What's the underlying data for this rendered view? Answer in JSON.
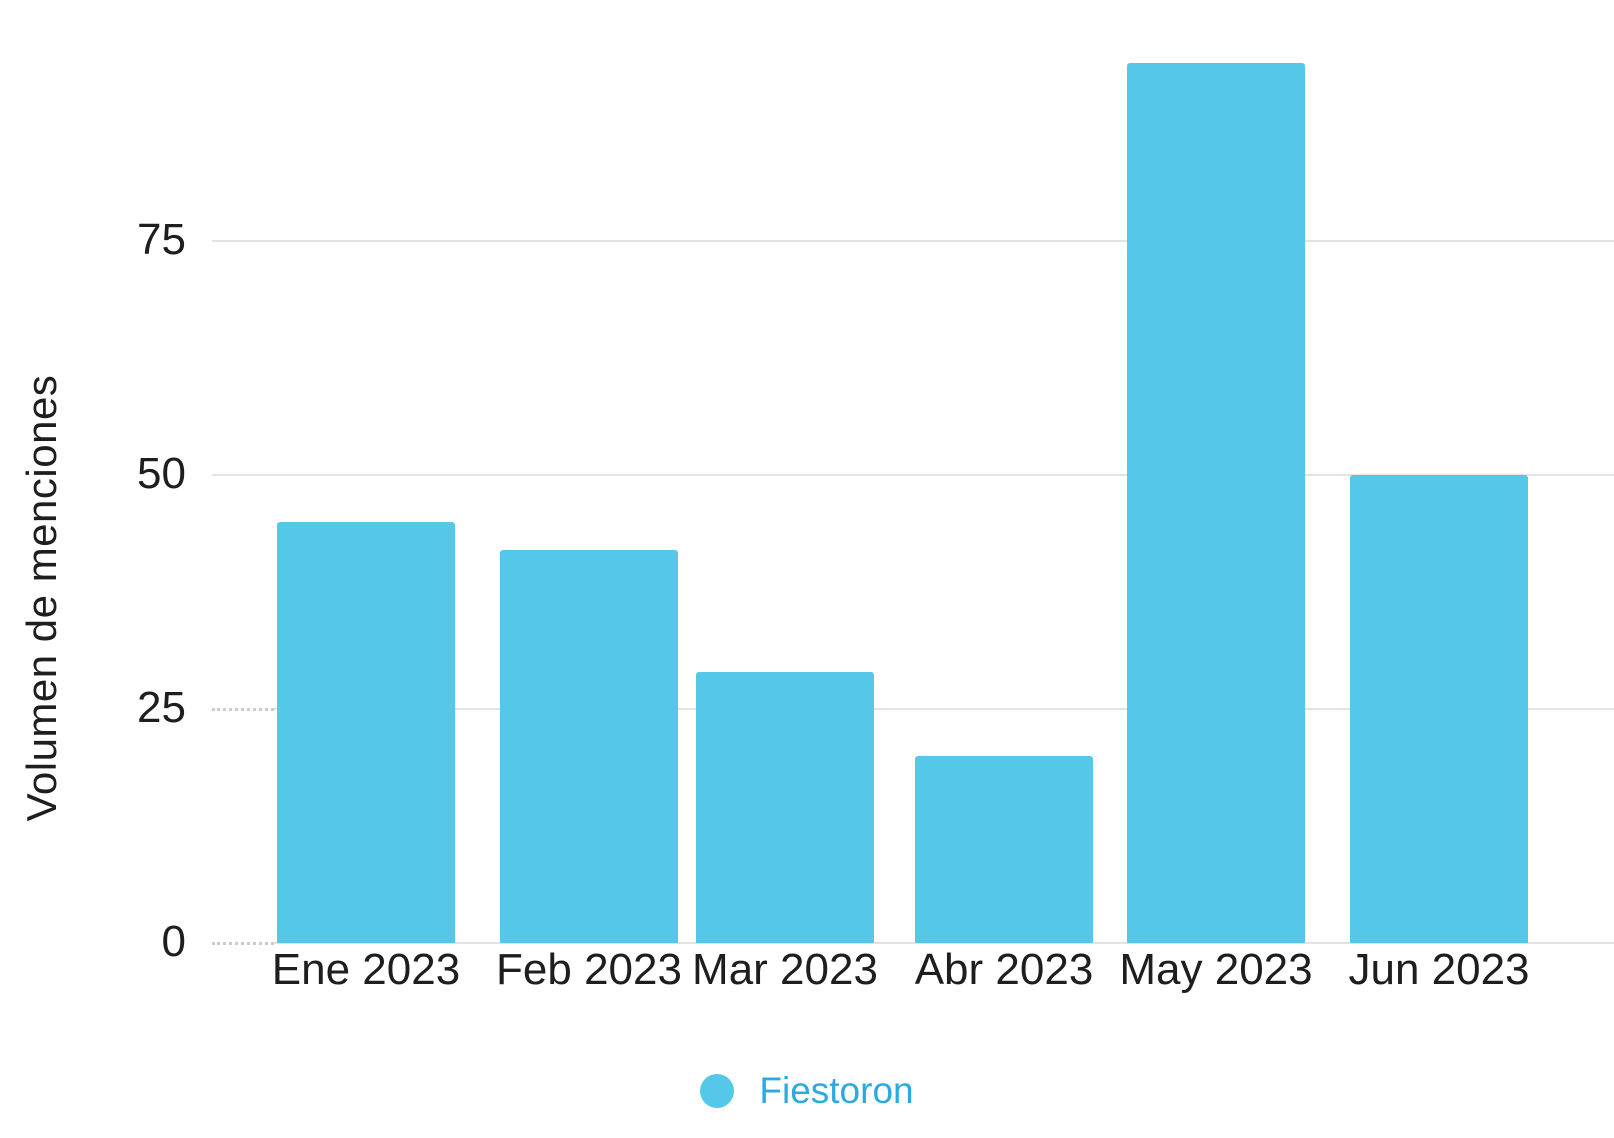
{
  "chart_data": {
    "type": "bar",
    "title": "",
    "categories": [
      "Ene 2023",
      "Feb 2023",
      "Mar 2023",
      "Abr 2023",
      "May 2023",
      "Jun 2023"
    ],
    "series": [
      {
        "name": "Fiestoron",
        "values": [
          45,
          42,
          29,
          20,
          94,
          50
        ]
      }
    ],
    "xlabel": "",
    "ylabel": "Volumen de menciones",
    "yticks": [
      0,
      25,
      50,
      75
    ],
    "ylim": [
      0,
      100
    ],
    "grid": "horizontal",
    "legend_position": "bottom",
    "colors": {
      "bar": "#55C8E9",
      "legend_text": "#29ABE2",
      "gridline": "#E3E3E3",
      "axis_text": "#1E1E1E",
      "background": "#FFFFFF"
    }
  }
}
